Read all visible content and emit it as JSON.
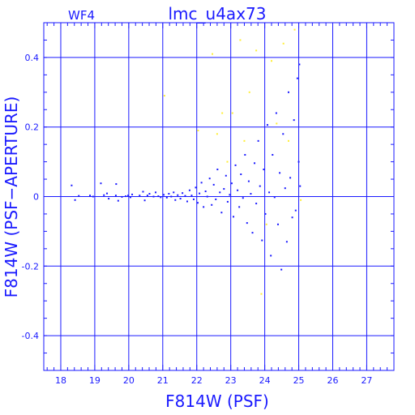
{
  "chart_data": {
    "type": "scatter",
    "title": "lmc_u4ax73",
    "subtitle": "WF4",
    "xlabel": "F814W (PSF)",
    "ylabel": "F814W (PSF−APERTURE)",
    "xlim": [
      17.5,
      27.8
    ],
    "ylim": [
      -0.5,
      0.5
    ],
    "x_ticks": [
      18,
      19,
      20,
      21,
      22,
      23,
      24,
      25,
      26,
      27
    ],
    "y_ticks": [
      -0.4,
      -0.2,
      0,
      0.2,
      0.4
    ],
    "grid": true,
    "colors": {
      "axes": "#1a1aff",
      "main": "#1a1aff",
      "rejected": "#ffee33"
    },
    "series": [
      {
        "color": "#1a1aff",
        "points": [
          [
            18.32,
            0.032
          ],
          [
            18.42,
            -0.01
          ],
          [
            18.53,
            0.002
          ],
          [
            18.86,
            0.003
          ],
          [
            18.95,
            0.0
          ],
          [
            19.18,
            0.038
          ],
          [
            19.27,
            0.004
          ],
          [
            19.36,
            0.009
          ],
          [
            19.41,
            -0.006
          ],
          [
            19.62,
            0.003
          ],
          [
            19.63,
            0.036
          ],
          [
            19.69,
            -0.012
          ],
          [
            19.8,
            -0.001
          ],
          [
            19.91,
            0.001
          ],
          [
            19.98,
            0.003
          ],
          [
            20.05,
            -0.002
          ],
          [
            20.1,
            0.006
          ],
          [
            20.32,
            0.003
          ],
          [
            20.42,
            0.014
          ],
          [
            20.47,
            -0.011
          ],
          [
            20.55,
            0.003
          ],
          [
            20.61,
            0.008
          ],
          [
            20.73,
            0.0
          ],
          [
            20.79,
            0.012
          ],
          [
            20.87,
            0.001
          ],
          [
            20.94,
            -0.002
          ],
          [
            21.03,
            0.005
          ],
          [
            21.12,
            -0.003
          ],
          [
            21.18,
            0.008
          ],
          [
            21.25,
            0.0
          ],
          [
            21.32,
            0.012
          ],
          [
            21.37,
            -0.01
          ],
          [
            21.44,
            0.004
          ],
          [
            21.52,
            -0.006
          ],
          [
            21.58,
            0.01
          ],
          [
            21.66,
            0.002
          ],
          [
            21.72,
            -0.014
          ],
          [
            21.79,
            0.018
          ],
          [
            21.85,
            0.003
          ],
          [
            21.91,
            -0.008
          ],
          [
            21.97,
            0.026
          ],
          [
            22.03,
            -0.018
          ],
          [
            22.08,
            0.009
          ],
          [
            22.14,
            0.04
          ],
          [
            22.2,
            -0.03
          ],
          [
            22.26,
            0.015
          ],
          [
            22.31,
            0.0
          ],
          [
            22.38,
            0.052
          ],
          [
            22.44,
            -0.024
          ],
          [
            22.5,
            0.034
          ],
          [
            22.56,
            -0.008
          ],
          [
            22.61,
            0.078
          ],
          [
            22.68,
            0.012
          ],
          [
            22.73,
            -0.046
          ],
          [
            22.8,
            0.022
          ],
          [
            22.86,
            0.06
          ],
          [
            22.91,
            -0.015
          ],
          [
            22.97,
            0.005
          ],
          [
            23.03,
            0.038
          ],
          [
            23.08,
            -0.058
          ],
          [
            23.14,
            0.09
          ],
          [
            23.2,
            0.018
          ],
          [
            23.25,
            -0.03
          ],
          [
            23.3,
            0.064
          ],
          [
            23.36,
            -0.004
          ],
          [
            23.42,
            0.12
          ],
          [
            23.48,
            -0.076
          ],
          [
            23.53,
            0.044
          ],
          [
            23.59,
            0.008
          ],
          [
            23.64,
            -0.104
          ],
          [
            23.7,
            0.096
          ],
          [
            23.75,
            -0.02
          ],
          [
            23.81,
            0.16
          ],
          [
            23.86,
            0.03
          ],
          [
            23.92,
            -0.126
          ],
          [
            23.97,
            0.078
          ],
          [
            24.02,
            -0.05
          ],
          [
            24.08,
            0.206
          ],
          [
            24.13,
            0.012
          ],
          [
            24.18,
            -0.17
          ],
          [
            24.23,
            0.12
          ],
          [
            24.29,
            -0.002
          ],
          [
            24.34,
            0.24
          ],
          [
            24.39,
            -0.08
          ],
          [
            24.44,
            0.068
          ],
          [
            24.49,
            -0.21
          ],
          [
            24.54,
            0.18
          ],
          [
            24.6,
            0.024
          ],
          [
            24.65,
            -0.13
          ],
          [
            24.7,
            0.3
          ],
          [
            24.75,
            0.054
          ],
          [
            24.81,
            -0.06
          ],
          [
            24.86,
            0.22
          ],
          [
            24.91,
            -0.04
          ],
          [
            24.96,
            0.34
          ],
          [
            25.0,
            0.1
          ],
          [
            25.02,
            0.38
          ],
          [
            25.04,
            0.03
          ]
        ]
      },
      {
        "color": "#ffee33",
        "points": [
          [
            21.05,
            0.29
          ],
          [
            22.04,
            0.19
          ],
          [
            22.46,
            0.41
          ],
          [
            22.6,
            0.18
          ],
          [
            22.75,
            0.24
          ],
          [
            22.9,
            0.1
          ],
          [
            23.05,
            0.24
          ],
          [
            23.28,
            0.45
          ],
          [
            23.4,
            0.16
          ],
          [
            23.55,
            0.3
          ],
          [
            23.75,
            0.42
          ],
          [
            23.9,
            -0.28
          ],
          [
            24.05,
            -0.08
          ],
          [
            24.2,
            0.39
          ],
          [
            24.35,
            0.21
          ],
          [
            24.55,
            0.44
          ],
          [
            24.7,
            0.16
          ],
          [
            24.88,
            0.48
          ],
          [
            25.06,
            -0.01
          ]
        ]
      }
    ]
  }
}
